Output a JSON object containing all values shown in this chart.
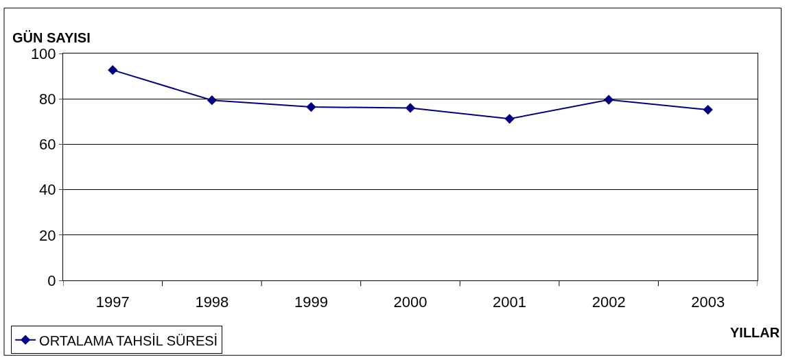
{
  "chart_data": {
    "type": "line",
    "ylabel": "GÜN SAYISI",
    "xlabel": "YILLAR",
    "categories": [
      "1997",
      "1998",
      "1999",
      "2000",
      "2001",
      "2002",
      "2003"
    ],
    "series": [
      {
        "name": "ORTALAMA TAHSİL SÜRESİ",
        "color": "#000080",
        "values": [
          92.7,
          79.4,
          76.4,
          76.0,
          71.2,
          79.6,
          75.2
        ]
      }
    ],
    "ylim": [
      0,
      100
    ],
    "yticks": [
      0,
      20,
      40,
      60,
      80,
      100
    ],
    "grid": "y",
    "legend": "bottom left",
    "marker": "diamond",
    "line_style": "solid"
  }
}
